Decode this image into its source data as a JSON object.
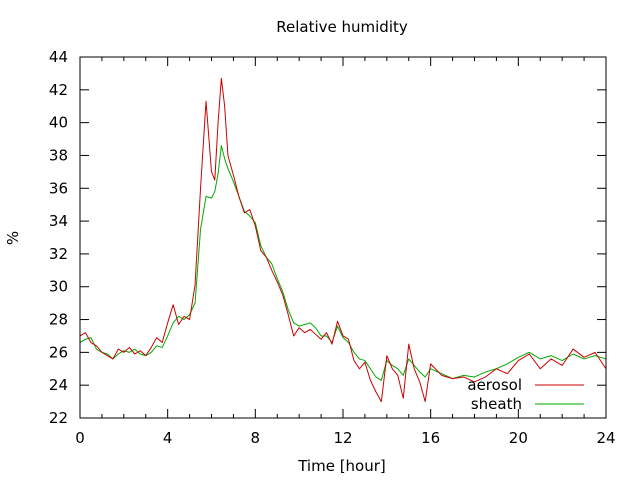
{
  "chart_data": {
    "type": "line",
    "title": "Relative humidity",
    "xlabel": "Time [hour]",
    "ylabel": "%",
    "xlim": [
      0,
      24
    ],
    "ylim": [
      22,
      44
    ],
    "xticks": [
      0,
      4,
      8,
      12,
      16,
      20,
      24
    ],
    "yticks": [
      22,
      24,
      26,
      28,
      30,
      32,
      34,
      36,
      38,
      40,
      42,
      44
    ],
    "grid": false,
    "legend_position": "bottom-right",
    "series": [
      {
        "name": "aerosol",
        "color": "#cc0000",
        "x": [
          0,
          0.25,
          0.5,
          0.75,
          1,
          1.25,
          1.5,
          1.75,
          2,
          2.25,
          2.5,
          2.75,
          3,
          3.25,
          3.5,
          3.75,
          4,
          4.25,
          4.5,
          4.75,
          5,
          5.25,
          5.5,
          5.75,
          6,
          6.15,
          6.3,
          6.45,
          6.6,
          6.75,
          7,
          7.25,
          7.5,
          7.75,
          8,
          8.25,
          8.5,
          8.75,
          9,
          9.25,
          9.5,
          9.75,
          10,
          10.25,
          10.5,
          10.75,
          11,
          11.25,
          11.5,
          11.75,
          12,
          12.25,
          12.5,
          12.75,
          13,
          13.25,
          13.5,
          13.75,
          14,
          14.25,
          14.5,
          14.75,
          15,
          15.25,
          15.5,
          15.75,
          16,
          16.5,
          17,
          17.5,
          18,
          18.5,
          19,
          19.5,
          20,
          20.5,
          21,
          21.5,
          22,
          22.5,
          23,
          23.5,
          24
        ],
        "values": [
          27.0,
          27.2,
          26.6,
          26.4,
          26.0,
          25.8,
          25.6,
          26.2,
          26.0,
          26.3,
          25.9,
          26.1,
          25.8,
          26.3,
          26.9,
          26.6,
          27.8,
          28.9,
          27.7,
          28.2,
          28.0,
          30.1,
          36.0,
          41.3,
          37.0,
          36.5,
          40.0,
          42.7,
          41.0,
          38.0,
          36.8,
          35.5,
          34.5,
          34.7,
          33.7,
          32.2,
          31.8,
          31.0,
          30.3,
          29.5,
          28.3,
          27.0,
          27.5,
          27.2,
          27.4,
          27.1,
          26.8,
          27.2,
          26.5,
          27.9,
          27.0,
          26.8,
          25.5,
          25.0,
          25.4,
          24.3,
          23.6,
          23.0,
          25.8,
          25.0,
          24.6,
          23.2,
          26.5,
          25.0,
          24.2,
          23.0,
          25.3,
          24.6,
          24.4,
          24.5,
          24.2,
          24.5,
          25.0,
          24.7,
          25.5,
          25.9,
          25.0,
          25.6,
          25.2,
          26.2,
          25.7,
          26.0,
          25.0
        ]
      },
      {
        "name": "sheath",
        "color": "#00aa00",
        "x": [
          0,
          0.25,
          0.5,
          0.75,
          1,
          1.25,
          1.5,
          1.75,
          2,
          2.25,
          2.5,
          2.75,
          3,
          3.25,
          3.5,
          3.75,
          4,
          4.25,
          4.5,
          4.75,
          5,
          5.25,
          5.5,
          5.75,
          6,
          6.15,
          6.3,
          6.45,
          6.6,
          6.75,
          7,
          7.25,
          7.5,
          7.75,
          8,
          8.25,
          8.5,
          8.75,
          9,
          9.25,
          9.5,
          9.75,
          10,
          10.25,
          10.5,
          10.75,
          11,
          11.25,
          11.5,
          11.75,
          12,
          12.25,
          12.5,
          12.75,
          13,
          13.25,
          13.5,
          13.75,
          14,
          14.25,
          14.5,
          14.75,
          15,
          15.25,
          15.5,
          15.75,
          16,
          16.5,
          17,
          17.5,
          18,
          18.5,
          19,
          19.5,
          20,
          20.5,
          21,
          21.5,
          22,
          22.5,
          23,
          23.5,
          24
        ],
        "values": [
          26.6,
          26.8,
          26.9,
          26.2,
          26.0,
          25.9,
          25.6,
          25.9,
          26.1,
          26.0,
          26.2,
          25.9,
          25.8,
          26.0,
          26.4,
          26.3,
          27.0,
          27.8,
          28.2,
          28.0,
          28.3,
          29.0,
          33.5,
          35.5,
          35.4,
          35.8,
          36.9,
          38.6,
          37.8,
          37.2,
          36.4,
          35.5,
          34.6,
          34.3,
          33.9,
          32.5,
          31.8,
          31.4,
          30.5,
          29.7,
          28.6,
          27.8,
          27.6,
          27.7,
          27.8,
          27.5,
          27.0,
          27.0,
          26.6,
          27.6,
          26.9,
          26.6,
          26.0,
          25.6,
          25.5,
          25.0,
          24.5,
          24.3,
          25.5,
          25.2,
          25.0,
          24.6,
          25.6,
          25.2,
          24.8,
          24.5,
          25.0,
          24.7,
          24.4,
          24.6,
          24.5,
          24.8,
          25.0,
          25.3,
          25.7,
          26.0,
          25.6,
          25.8,
          25.5,
          25.9,
          25.6,
          25.8,
          25.6
        ]
      }
    ]
  }
}
